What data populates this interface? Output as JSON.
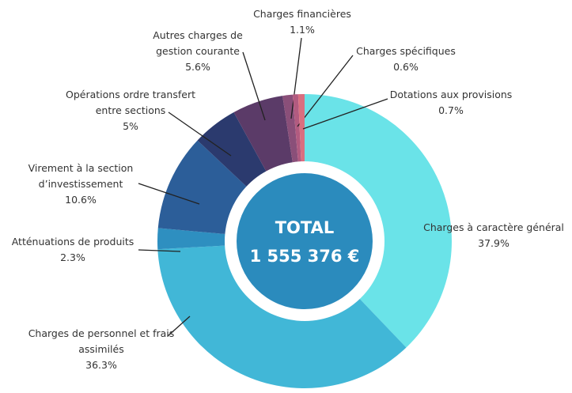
{
  "chart_data": {
    "type": "donut",
    "center_label": [
      "TOTAL",
      "1 555 376 €"
    ],
    "categories": [
      "Charges à caractère général",
      "Charges de personnel et frais assimilés",
      "Atténuations de produits",
      "Virement à la section d’investissement",
      "Opérations ordre transfert entre sections",
      "Autres charges de gestion courante",
      "Charges financières",
      "Charges spécifiques",
      "Dotations aux provisions"
    ],
    "values": [
      37.9,
      36.3,
      2.3,
      10.6,
      5,
      5.6,
      1.1,
      0.6,
      0.7
    ],
    "value_labels": [
      "37.9%",
      "36.3%",
      "2.3%",
      "10.6%",
      "5%",
      "5.6%",
      "1.1%",
      "0.6%",
      "0.7%"
    ],
    "colors": [
      "#6ae3e8",
      "#41b7d7",
      "#2e8fc0",
      "#2c5e99",
      "#2b3a6e",
      "#5b3b68",
      "#8a4f79",
      "#b25b80",
      "#d96f80"
    ]
  }
}
